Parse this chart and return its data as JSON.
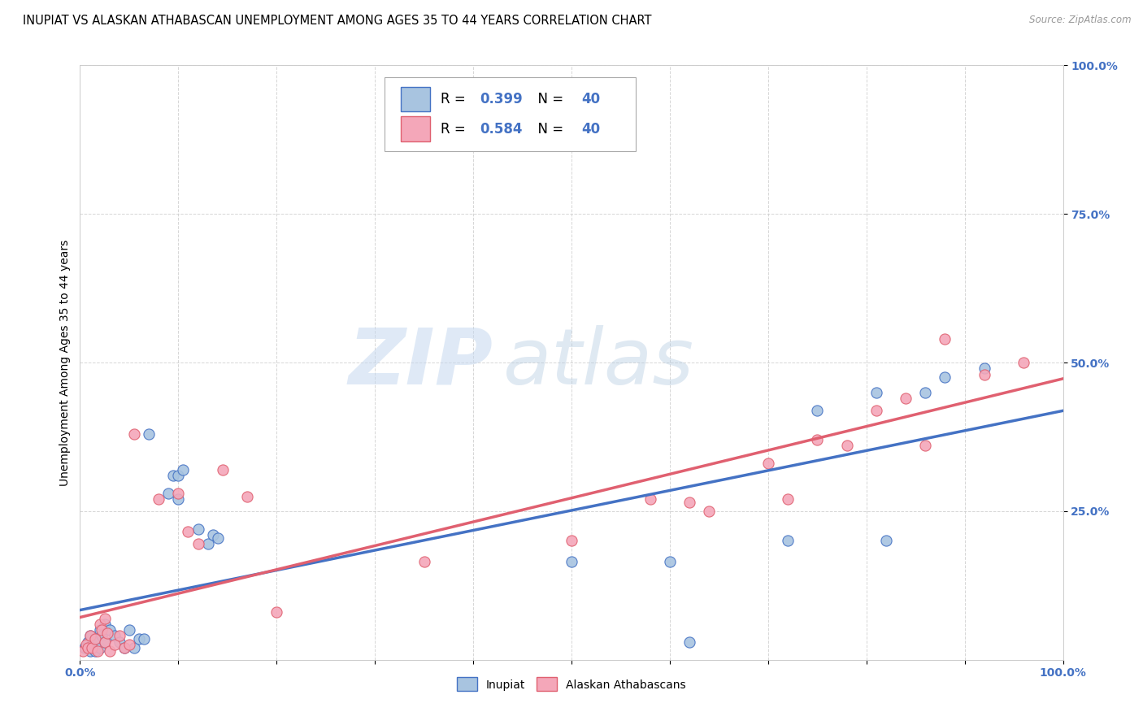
{
  "title": "INUPIAT VS ALASKAN ATHABASCAN UNEMPLOYMENT AMONG AGES 35 TO 44 YEARS CORRELATION CHART",
  "source": "Source: ZipAtlas.com",
  "ylabel": "Unemployment Among Ages 35 to 44 years",
  "legend_label_1": "Inupiat",
  "legend_label_2": "Alaskan Athabascans",
  "R1": 0.399,
  "N1": 40,
  "R2": 0.584,
  "N2": 40,
  "color_inupiat": "#a8c4e0",
  "color_athabascan": "#f4a7b9",
  "line_color_inupiat": "#4472c4",
  "line_color_athabascan": "#e06070",
  "background_color": "#ffffff",
  "xlim": [
    0.0,
    1.0
  ],
  "ylim": [
    0.0,
    1.0
  ],
  "watermark_zip": "ZIP",
  "watermark_atlas": "atlas",
  "marker_size": 90,
  "inupiat_x": [
    0.005,
    0.008,
    0.01,
    0.01,
    0.012,
    0.015,
    0.015,
    0.02,
    0.02,
    0.022,
    0.025,
    0.025,
    0.03,
    0.035,
    0.04,
    0.045,
    0.05,
    0.055,
    0.06,
    0.065,
    0.07,
    0.09,
    0.095,
    0.1,
    0.1,
    0.105,
    0.12,
    0.13,
    0.135,
    0.14,
    0.5,
    0.6,
    0.62,
    0.72,
    0.75,
    0.81,
    0.82,
    0.86,
    0.88,
    0.92
  ],
  "inupiat_y": [
    0.02,
    0.03,
    0.015,
    0.04,
    0.025,
    0.015,
    0.035,
    0.02,
    0.05,
    0.04,
    0.03,
    0.06,
    0.05,
    0.04,
    0.03,
    0.02,
    0.05,
    0.02,
    0.035,
    0.035,
    0.38,
    0.28,
    0.31,
    0.27,
    0.31,
    0.32,
    0.22,
    0.195,
    0.21,
    0.205,
    0.165,
    0.165,
    0.03,
    0.2,
    0.42,
    0.45,
    0.2,
    0.45,
    0.475,
    0.49
  ],
  "athabascan_x": [
    0.003,
    0.006,
    0.008,
    0.01,
    0.012,
    0.015,
    0.018,
    0.02,
    0.022,
    0.025,
    0.025,
    0.028,
    0.03,
    0.035,
    0.04,
    0.045,
    0.05,
    0.055,
    0.08,
    0.1,
    0.11,
    0.12,
    0.145,
    0.17,
    0.2,
    0.35,
    0.5,
    0.58,
    0.62,
    0.64,
    0.7,
    0.72,
    0.75,
    0.78,
    0.81,
    0.84,
    0.86,
    0.88,
    0.92,
    0.96
  ],
  "athabascan_y": [
    0.015,
    0.025,
    0.02,
    0.04,
    0.02,
    0.035,
    0.015,
    0.06,
    0.05,
    0.03,
    0.07,
    0.045,
    0.015,
    0.025,
    0.04,
    0.02,
    0.025,
    0.38,
    0.27,
    0.28,
    0.215,
    0.195,
    0.32,
    0.275,
    0.08,
    0.165,
    0.2,
    0.27,
    0.265,
    0.25,
    0.33,
    0.27,
    0.37,
    0.36,
    0.42,
    0.44,
    0.36,
    0.54,
    0.48,
    0.5
  ]
}
